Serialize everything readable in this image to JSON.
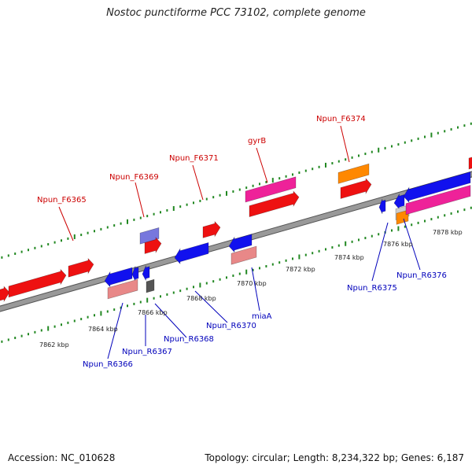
{
  "title": "Nostoc punctiforme PCC 73102, complete genome",
  "footer": {
    "accession": "Accession: NC_010628",
    "summary": "Topology: circular; Length: 8,234,322 bp; Genes: 6,187"
  },
  "scale_labels": [
    "7862 kbp",
    "7864 kbp",
    "7866 kbp",
    "7868 kbp",
    "7870 kbp",
    "7872 kbp",
    "7874 kbp",
    "7876 kbp",
    "7878 kbp"
  ],
  "forward_labels": [
    "Npun_F6365",
    "Npun_F6369",
    "Npun_F6371",
    "gyrB",
    "Npun_F6374"
  ],
  "reverse_labels": [
    "Npun_R6366",
    "Npun_R6367",
    "Npun_R6368",
    "Npun_R6370",
    "miaA",
    "Npun_R6375",
    "Npun_R6376"
  ],
  "colors": {
    "forward_gene": "#ee1111",
    "reverse_gene": "#1111ee",
    "pink_gene": "#ee2299",
    "orange_gene": "#ff8800",
    "pale_red": "#e88888",
    "pale_blue": "#7777dd",
    "gray_gene": "#555555",
    "tick": "#228822",
    "forward_label": "#cc0000",
    "reverse_label": "#0000bb",
    "backbone": "#888888"
  }
}
